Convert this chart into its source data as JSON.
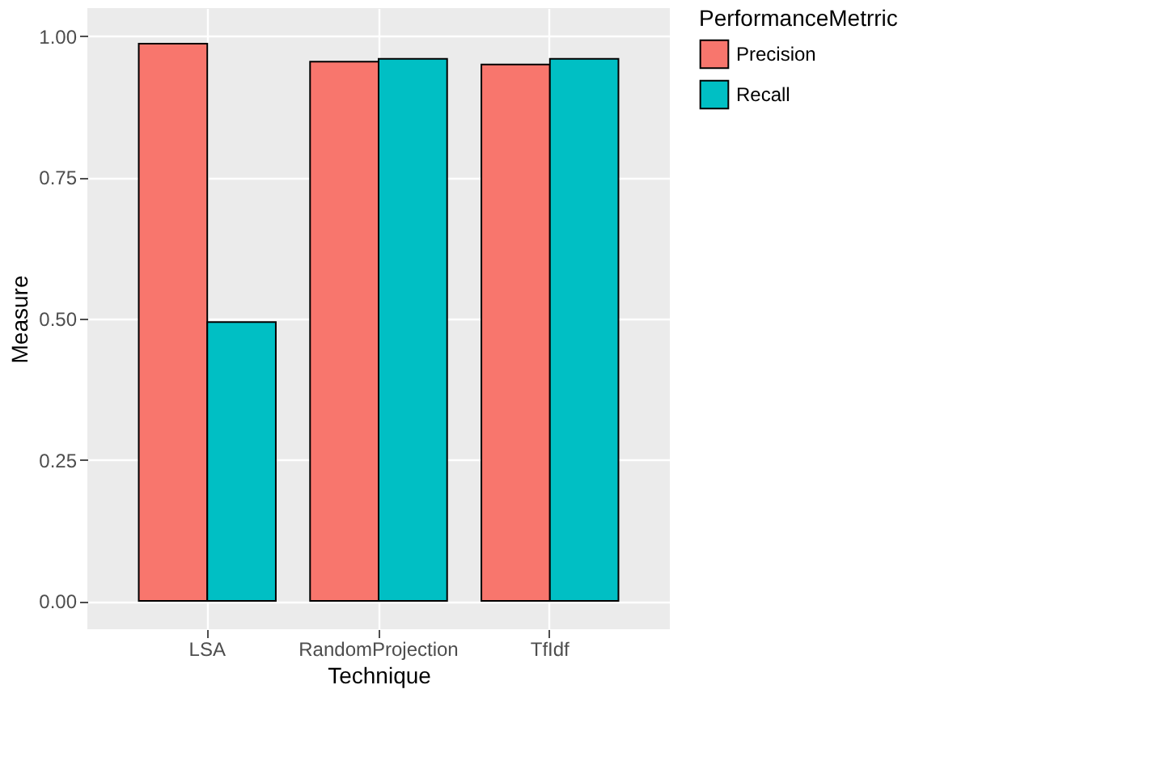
{
  "chart_data": {
    "type": "bar",
    "xlabel": "Technique",
    "ylabel": "Measure",
    "legend_title": "PerformanceMetrric",
    "categories": [
      "LSA",
      "RandomProjection",
      "TfIdf"
    ],
    "series": [
      {
        "name": "Precision",
        "color": "#f8766d",
        "values": [
          0.987,
          0.955,
          0.95
        ]
      },
      {
        "name": "Recall",
        "color": "#00bfc4",
        "values": [
          0.494,
          0.96,
          0.96
        ]
      }
    ],
    "ylim": [
      -0.05,
      1.05
    ],
    "yticks": [
      {
        "value": 0,
        "label": "0.00"
      },
      {
        "value": 0.25,
        "label": "0.25"
      },
      {
        "value": 0.5,
        "label": "0.50"
      },
      {
        "value": 0.75,
        "label": "0.75"
      },
      {
        "value": 1,
        "label": "1.00"
      }
    ],
    "grid": true,
    "legend": "right"
  }
}
